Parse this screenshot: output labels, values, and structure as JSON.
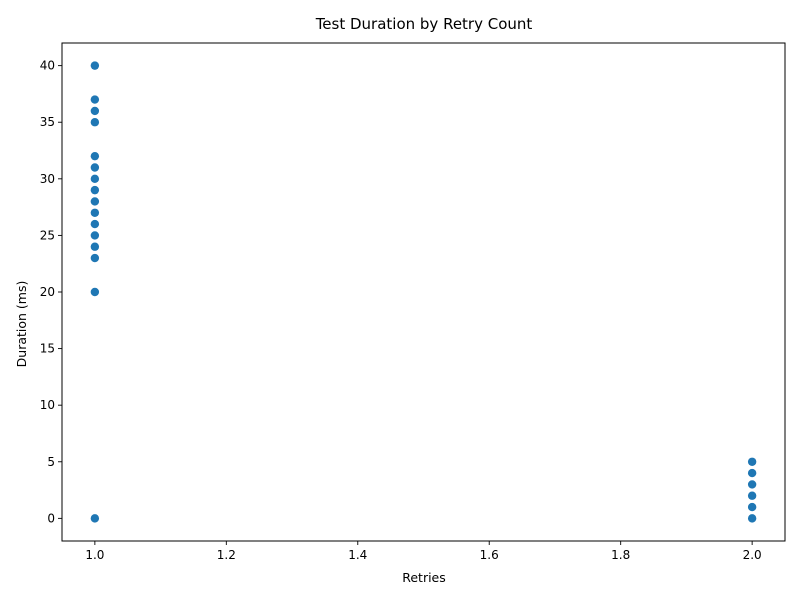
{
  "chart_data": {
    "type": "scatter",
    "title": "Test Duration by Retry Count",
    "xlabel": "Retries",
    "ylabel": "Duration (ms)",
    "xlim": [
      0.95,
      2.05
    ],
    "ylim": [
      -2,
      42
    ],
    "xticks": [
      1.0,
      1.2,
      1.4,
      1.6,
      1.8,
      2.0
    ],
    "xtick_labels": [
      "1.0",
      "1.2",
      "1.4",
      "1.6",
      "1.8",
      "2.0"
    ],
    "yticks": [
      0,
      5,
      10,
      15,
      20,
      25,
      30,
      35,
      40
    ],
    "ytick_labels": [
      "0",
      "5",
      "10",
      "15",
      "20",
      "25",
      "30",
      "35",
      "40"
    ],
    "grid": false,
    "marker_color": "#1f77b4",
    "series": [
      {
        "x": [
          1,
          1,
          1,
          1,
          1,
          1,
          1,
          1,
          1,
          1,
          1,
          1,
          1,
          1,
          1,
          1,
          2,
          2,
          2,
          2,
          2,
          2
        ],
        "y": [
          40,
          37,
          36,
          35,
          32,
          31,
          30,
          29,
          28,
          27,
          26,
          25,
          24,
          23,
          20,
          0,
          5,
          4,
          3,
          2,
          1,
          0
        ]
      }
    ]
  }
}
